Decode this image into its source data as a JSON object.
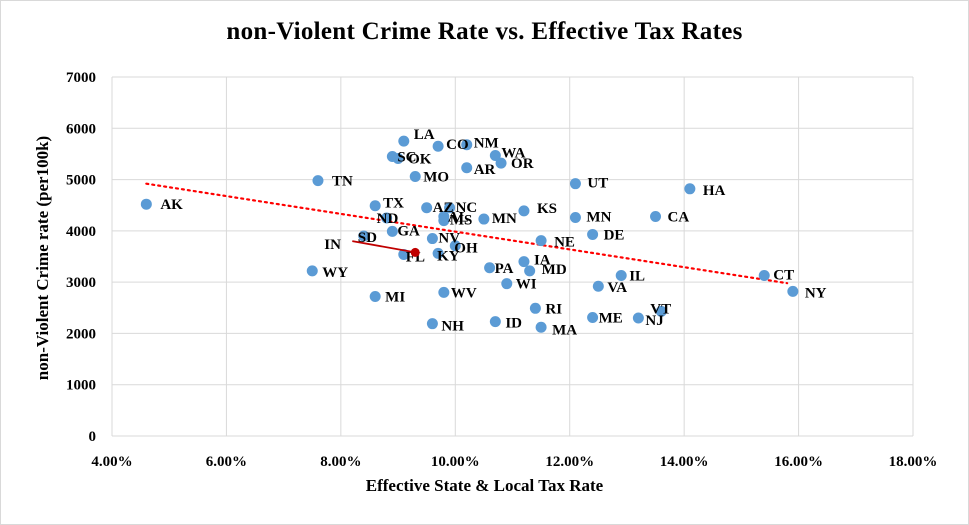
{
  "chart_data": {
    "type": "scatter",
    "title": "non-Violent Crime Rate vs. Effective Tax Rates",
    "xlabel": "Effective State & Local Tax Rate",
    "ylabel": "non-Violent Crime rate (per100k)",
    "xlim": [
      0.04,
      0.18
    ],
    "ylim": [
      0,
      7000
    ],
    "x_ticks": [
      0.04,
      0.06,
      0.08,
      0.1,
      0.12,
      0.14,
      0.16,
      0.18
    ],
    "x_tick_labels": [
      "4.00%",
      "6.00%",
      "8.00%",
      "10.00%",
      "12.00%",
      "14.00%",
      "16.00%",
      "18.00%"
    ],
    "y_ticks": [
      0,
      1000,
      2000,
      3000,
      4000,
      5000,
      6000,
      7000
    ],
    "y_tick_labels": [
      "0",
      "1000",
      "2000",
      "3000",
      "4000",
      "5000",
      "6000",
      "7000"
    ],
    "grid": true,
    "marker_color": "#5B9BD5",
    "highlight_color": "#C00000",
    "trendline": {
      "type": "linear",
      "color": "#FF0000",
      "style": "dotted",
      "x": [
        0.046,
        0.158
      ],
      "y": [
        4920,
        2980
      ]
    },
    "points": [
      {
        "label": "AK",
        "x": 0.046,
        "y": 4520
      },
      {
        "label": "LA",
        "x": 0.091,
        "y": 5750
      },
      {
        "label": "CO",
        "x": 0.097,
        "y": 5650
      },
      {
        "label": "NM",
        "x": 0.102,
        "y": 5680
      },
      {
        "label": "WA",
        "x": 0.107,
        "y": 5470
      },
      {
        "label": "SC",
        "x": 0.089,
        "y": 5450
      },
      {
        "label": "OK",
        "x": 0.09,
        "y": 5410
      },
      {
        "label": "AR",
        "x": 0.102,
        "y": 5230
      },
      {
        "label": "OR",
        "x": 0.108,
        "y": 5320
      },
      {
        "label": "MO",
        "x": 0.093,
        "y": 5060
      },
      {
        "label": "TN",
        "x": 0.076,
        "y": 4980
      },
      {
        "label": "UT",
        "x": 0.121,
        "y": 4920
      },
      {
        "label": "HA",
        "x": 0.141,
        "y": 4820
      },
      {
        "label": "TX",
        "x": 0.086,
        "y": 4490
      },
      {
        "label": "AZ",
        "x": 0.095,
        "y": 4450
      },
      {
        "label": "NC",
        "x": 0.099,
        "y": 4450
      },
      {
        "label": "KS",
        "x": 0.112,
        "y": 4390
      },
      {
        "label": "ND",
        "x": 0.088,
        "y": 4250
      },
      {
        "label": "AL",
        "x": 0.098,
        "y": 4280
      },
      {
        "label": "MS",
        "x": 0.098,
        "y": 4200
      },
      {
        "label": "MN",
        "x": 0.105,
        "y": 4230
      },
      {
        "label": "MN",
        "x": 0.121,
        "y": 4260
      },
      {
        "label": "CA",
        "x": 0.135,
        "y": 4280
      },
      {
        "label": "SD",
        "x": 0.084,
        "y": 3900
      },
      {
        "label": "GA",
        "x": 0.089,
        "y": 3990
      },
      {
        "label": "DE",
        "x": 0.124,
        "y": 3930
      },
      {
        "label": "NV",
        "x": 0.096,
        "y": 3850
      },
      {
        "label": "NE",
        "x": 0.115,
        "y": 3810
      },
      {
        "label": "OH",
        "x": 0.1,
        "y": 3710
      },
      {
        "label": "KY",
        "x": 0.097,
        "y": 3560
      },
      {
        "label": "FL",
        "x": 0.091,
        "y": 3540
      },
      {
        "label": "IA",
        "x": 0.112,
        "y": 3400
      },
      {
        "label": "PA",
        "x": 0.106,
        "y": 3280
      },
      {
        "label": "MD",
        "x": 0.113,
        "y": 3220
      },
      {
        "label": "WY",
        "x": 0.075,
        "y": 3220
      },
      {
        "label": "IL",
        "x": 0.129,
        "y": 3130
      },
      {
        "label": "CT",
        "x": 0.154,
        "y": 3130
      },
      {
        "label": "WI",
        "x": 0.109,
        "y": 2970
      },
      {
        "label": "VA",
        "x": 0.125,
        "y": 2920
      },
      {
        "label": "NY",
        "x": 0.159,
        "y": 2820
      },
      {
        "label": "WV",
        "x": 0.098,
        "y": 2800
      },
      {
        "label": "MI",
        "x": 0.086,
        "y": 2720
      },
      {
        "label": "RI",
        "x": 0.114,
        "y": 2490
      },
      {
        "label": "VT",
        "x": 0.136,
        "y": 2430
      },
      {
        "label": "ME",
        "x": 0.124,
        "y": 2310
      },
      {
        "label": "NJ",
        "x": 0.132,
        "y": 2300
      },
      {
        "label": "ID",
        "x": 0.107,
        "y": 2230
      },
      {
        "label": "NH",
        "x": 0.096,
        "y": 2190
      },
      {
        "label": "MA",
        "x": 0.115,
        "y": 2120
      }
    ],
    "highlight": {
      "label": "IN",
      "x": 0.093,
      "y": 3580,
      "arrow_from": {
        "x": 0.082,
        "y": 3800
      }
    }
  }
}
